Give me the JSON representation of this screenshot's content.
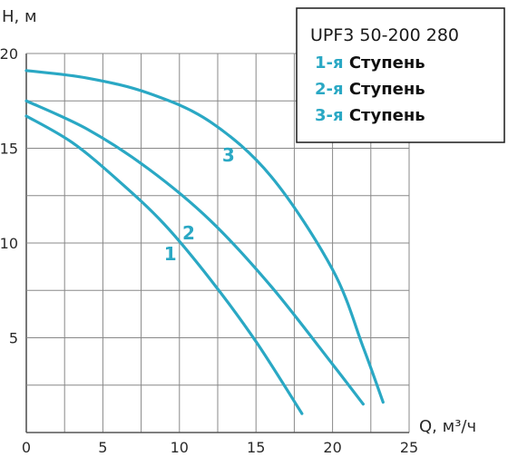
{
  "chart_data": {
    "type": "line",
    "xlabel": "Q, м³/ч",
    "ylabel": "H, м",
    "xlim": [
      0,
      25
    ],
    "ylim": [
      0,
      20
    ],
    "x_ticks": [
      0,
      5,
      10,
      15,
      20,
      25
    ],
    "y_ticks": [
      5,
      10,
      15,
      20
    ],
    "grid": true,
    "legend_placement": "top-right",
    "legend_title": "UPF3 50-200 280",
    "legend_entries": [
      {
        "num": "1-я",
        "word": "Ступень"
      },
      {
        "num": "2-я",
        "word": "Ступень"
      },
      {
        "num": "3-я",
        "word": "Ступень"
      }
    ],
    "series": [
      {
        "label": "1",
        "label_at": [
          9.4,
          9.1
        ],
        "points": [
          [
            0,
            16.7
          ],
          [
            3,
            15.3
          ],
          [
            6,
            13.3
          ],
          [
            9,
            11.0
          ],
          [
            12,
            8.1
          ],
          [
            15,
            4.8
          ],
          [
            18,
            1.0
          ]
        ]
      },
      {
        "label": "2",
        "label_at": [
          10.6,
          10.2
        ],
        "points": [
          [
            0,
            17.5
          ],
          [
            4,
            16.0
          ],
          [
            8,
            13.9
          ],
          [
            12,
            11.2
          ],
          [
            16,
            7.7
          ],
          [
            20,
            3.6
          ],
          [
            22,
            1.5
          ]
        ]
      },
      {
        "label": "3",
        "label_at": [
          13.2,
          14.3
        ],
        "points": [
          [
            0,
            19.1
          ],
          [
            4,
            18.7
          ],
          [
            8,
            17.9
          ],
          [
            12,
            16.4
          ],
          [
            16,
            13.5
          ],
          [
            20,
            8.6
          ],
          [
            22,
            4.5
          ],
          [
            23.3,
            1.6
          ]
        ]
      }
    ],
    "color": "#2aa8c4"
  }
}
